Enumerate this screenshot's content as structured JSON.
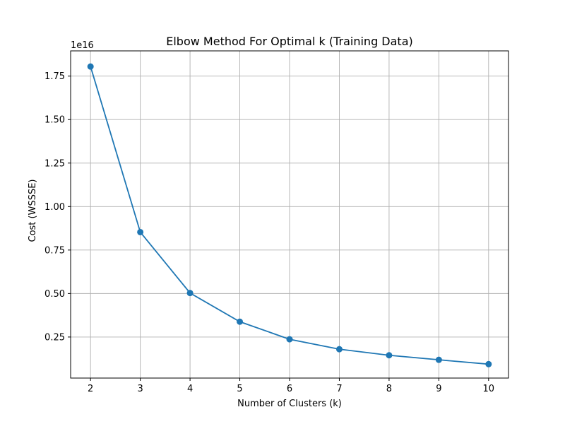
{
  "chart_data": {
    "type": "line",
    "title": "Elbow Method For Optimal k (Training Data)",
    "xlabel": "Number of Clusters (k)",
    "ylabel": "Cost (WSSSE)",
    "y_offset_label": "1e16",
    "x": [
      2,
      3,
      4,
      5,
      6,
      7,
      8,
      9,
      10
    ],
    "y": [
      1.805,
      0.853,
      0.503,
      0.338,
      0.237,
      0.18,
      0.145,
      0.119,
      0.094
    ],
    "xlim": [
      1.6,
      10.4
    ],
    "ylim": [
      0.014,
      1.895
    ],
    "x_ticks": [
      2,
      3,
      4,
      5,
      6,
      7,
      8,
      9,
      10
    ],
    "x_tick_labels": [
      "2",
      "3",
      "4",
      "5",
      "6",
      "7",
      "8",
      "9",
      "10"
    ],
    "y_ticks": [
      0.25,
      0.5,
      0.75,
      1.0,
      1.25,
      1.5,
      1.75
    ],
    "y_tick_labels": [
      "0.25",
      "0.50",
      "0.75",
      "1.00",
      "1.25",
      "1.50",
      "1.75"
    ],
    "grid": true,
    "marker": "circle",
    "line_color": "#1f77b4",
    "grid_color": "#b0b0b0"
  }
}
